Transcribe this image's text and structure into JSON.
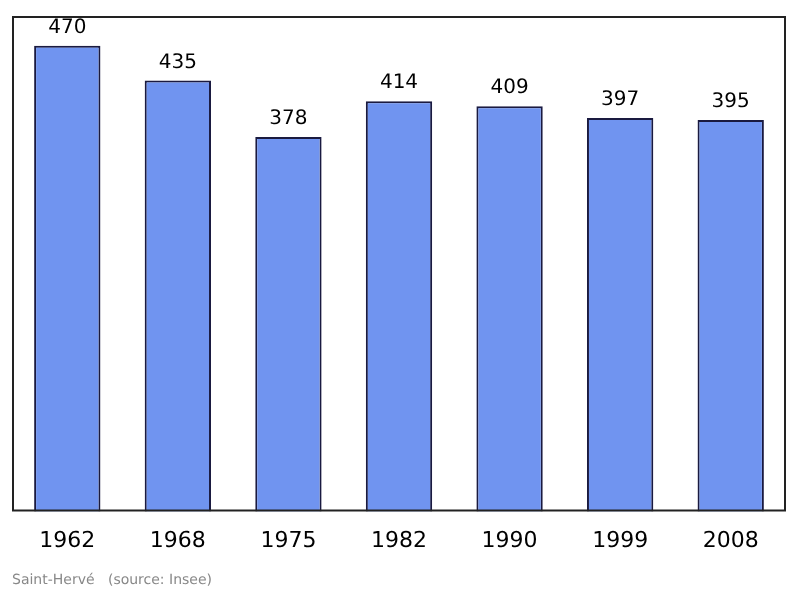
{
  "chart_data": {
    "type": "bar",
    "categories": [
      "1962",
      "1968",
      "1975",
      "1982",
      "1990",
      "1999",
      "2008"
    ],
    "values": [
      470,
      435,
      378,
      414,
      409,
      397,
      395
    ],
    "color": "#7094f0",
    "data_labels": true,
    "grid": false,
    "legend": false,
    "annotations": [
      "Saint-Hervé   (source: Insee)"
    ]
  }
}
